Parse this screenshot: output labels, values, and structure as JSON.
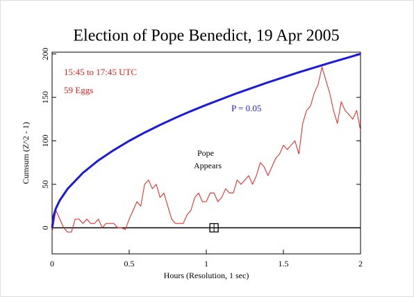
{
  "chart_data": {
    "type": "line",
    "title": "Election of Pope Benedict, 19 Apr 2005",
    "x_label": "Hours (Resolution, 1 sec)",
    "y_label": "Cumsum (Z^2 - 1)",
    "xlim": [
      0,
      2
    ],
    "ylim": [
      -30,
      202
    ],
    "xticks": [
      0,
      0.5,
      1,
      1.5,
      2
    ],
    "yticks": [
      0,
      50,
      100,
      150,
      200
    ],
    "hline": 0,
    "annotations": [
      "15:45 to 17:45 UTC",
      "59 Eggs",
      "Pope",
      "Appears"
    ],
    "event_marker": {
      "x": 1.05,
      "y": 0
    },
    "series": [
      {
        "color": "#e8201c",
        "x": [
          0,
          0.025,
          0.05,
          0.075,
          0.1,
          0.125,
          0.15,
          0.175,
          0.2,
          0.225,
          0.25,
          0.275,
          0.3,
          0.325,
          0.35,
          0.375,
          0.4,
          0.425,
          0.45,
          0.475,
          0.5,
          0.525,
          0.55,
          0.575,
          0.6,
          0.625,
          0.65,
          0.675,
          0.7,
          0.725,
          0.75,
          0.775,
          0.8,
          0.825,
          0.85,
          0.875,
          0.9,
          0.925,
          0.95,
          0.975,
          1.0,
          1.025,
          1.05,
          1.075,
          1.1,
          1.125,
          1.15,
          1.175,
          1.2,
          1.225,
          1.25,
          1.275,
          1.3,
          1.325,
          1.35,
          1.375,
          1.4,
          1.425,
          1.45,
          1.475,
          1.5,
          1.525,
          1.55,
          1.575,
          1.6,
          1.625,
          1.65,
          1.675,
          1.7,
          1.725,
          1.75,
          1.775,
          1.8,
          1.825,
          1.85,
          1.875,
          1.9,
          1.925,
          1.95,
          1.975,
          2.0
        ],
        "values": [
          -5,
          20,
          10,
          0,
          -5,
          -5,
          10,
          10,
          5,
          10,
          5,
          5,
          10,
          0,
          5,
          5,
          5,
          0,
          0,
          -2,
          10,
          20,
          30,
          25,
          50,
          55,
          45,
          50,
          35,
          40,
          25,
          10,
          5,
          5,
          5,
          15,
          20,
          35,
          40,
          30,
          30,
          40,
          40,
          30,
          35,
          45,
          40,
          40,
          55,
          50,
          55,
          60,
          50,
          60,
          75,
          70,
          60,
          70,
          80,
          85,
          95,
          90,
          95,
          100,
          85,
          120,
          135,
          140,
          155,
          165,
          185,
          170,
          155,
          135,
          120,
          145,
          135,
          130,
          125,
          135,
          112
        ]
      },
      {
        "name": "P = 0.05",
        "color": "#1a1adc",
        "x": [
          0,
          0.01,
          0.025,
          0.05,
          0.1,
          0.2,
          0.3,
          0.4,
          0.5,
          0.6,
          0.7,
          0.8,
          0.9,
          1.0,
          1.2,
          1.4,
          1.6,
          1.8,
          2.0
        ],
        "values": [
          0,
          14.1,
          22.4,
          31.6,
          44.7,
          63.2,
          77.5,
          89.4,
          100,
          109.5,
          118.3,
          126.5,
          134.2,
          141.4,
          154.9,
          167.3,
          178.9,
          189.7,
          200
        ]
      }
    ]
  }
}
